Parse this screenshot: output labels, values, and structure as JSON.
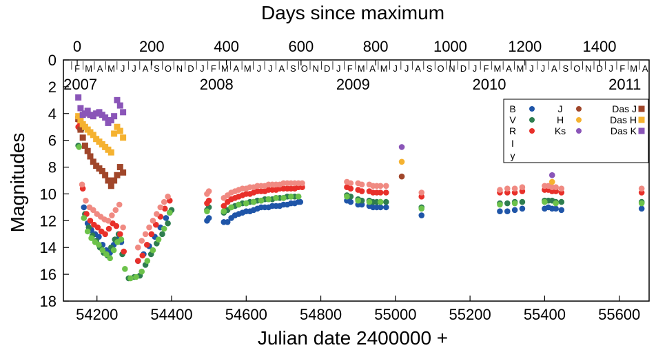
{
  "chart_data": {
    "type": "scatter",
    "title": "",
    "xlabel": "Julian date 2400000 +",
    "ylabel": "Magnitudes",
    "top_xlabel": "Days since maximum",
    "xlim": [
      54110,
      55680
    ],
    "ylim": [
      18,
      0
    ],
    "y_inverted": true,
    "grid": false,
    "legend_position": "top-right",
    "x_ticks": [
      54200,
      54400,
      54600,
      54800,
      55000,
      55200,
      55400,
      55600
    ],
    "x_tick_labels": [
      "54200",
      "54400",
      "54600",
      "54800",
      "55000",
      "55200",
      "55400",
      "55600"
    ],
    "y_ticks": [
      0,
      2,
      4,
      6,
      8,
      10,
      12,
      14,
      16,
      18
    ],
    "y_tick_labels": [
      "0",
      "2",
      "4",
      "6",
      "8",
      "10",
      "12",
      "14",
      "16",
      "18"
    ],
    "top_axis": {
      "max_jd": 54147,
      "ticks": [
        0,
        200,
        400,
        600,
        800,
        1000,
        1200,
        1400
      ],
      "tick_labels": [
        "0",
        "200",
        "400",
        "600",
        "800",
        "1000",
        "1200",
        "1400"
      ]
    },
    "month_letters": [
      "F",
      "M",
      "A",
      "M",
      "J",
      "J",
      "A",
      "S",
      "O",
      "N",
      "D",
      "J",
      "F",
      "M",
      "A",
      "M",
      "J",
      "J",
      "A",
      "S",
      "O",
      "N",
      "D",
      "J",
      "F",
      "M",
      "A",
      "M",
      "J",
      "J",
      "A",
      "S",
      "O",
      "N",
      "D",
      "J",
      "F",
      "M",
      "A",
      "M",
      "J",
      "J",
      "A",
      "S",
      "O",
      "N",
      "D",
      "J",
      "F",
      "M",
      "A"
    ],
    "month_start_jd": 54132,
    "month_days": 30.44,
    "year_labels": [
      {
        "text": "2007",
        "jd": 54101
      },
      {
        "text": "2008",
        "jd": 54466
      },
      {
        "text": "2009",
        "jd": 54832
      },
      {
        "text": "2010",
        "jd": 55197
      },
      {
        "text": "2011",
        "jd": 55562
      }
    ],
    "legend": [
      {
        "label": "B",
        "color": "#1f55a8",
        "marker": "circle"
      },
      {
        "label": "V",
        "color": "#2e7d4f",
        "marker": "circle"
      },
      {
        "label": "R",
        "color": "#e8302a",
        "marker": "circle"
      },
      {
        "label": "I",
        "color": "#f08a82",
        "marker": "circle"
      },
      {
        "label": "y",
        "color": "#6cc24a",
        "marker": "circle"
      },
      {
        "label": "J",
        "color": "#a0462a",
        "marker": "circle"
      },
      {
        "label": "H",
        "color": "#f5b230",
        "marker": "circle"
      },
      {
        "label": "Ks",
        "color": "#8a55b8",
        "marker": "circle"
      },
      {
        "label": "Das J",
        "color": "#a0462a",
        "marker": "square"
      },
      {
        "label": "Das H",
        "color": "#f5b230",
        "marker": "square"
      },
      {
        "label": "Das K",
        "color": "#8a55b8",
        "marker": "square"
      }
    ],
    "series": [
      {
        "name": "B",
        "color": "#1f55a8",
        "marker": "circle",
        "x": [
          54155,
          54165,
          54175,
          54185,
          54195,
          54205,
          54215,
          54225,
          54235,
          54245,
          54255,
          54265,
          54310,
          54325,
          54340,
          54355,
          54370,
          54385,
          54395,
          54495,
          54500,
          54540,
          54550,
          54560,
          54570,
          54580,
          54590,
          54600,
          54610,
          54620,
          54630,
          54640,
          54650,
          54660,
          54670,
          54680,
          54690,
          54700,
          54710,
          54720,
          54730,
          54740,
          54745,
          54870,
          54880,
          54900,
          54910,
          54930,
          54940,
          54950,
          54960,
          54975,
          55070,
          55280,
          55300,
          55320,
          55340,
          55400,
          55410,
          55420,
          55430,
          55445,
          55660
        ],
        "y": [
          5.2,
          11.0,
          12.2,
          12.7,
          13.0,
          13.2,
          13.8,
          14.2,
          14.4,
          13.8,
          13.4,
          13.6,
          15.0,
          14.5,
          13.9,
          13.2,
          12.5,
          11.8,
          11.4,
          12.0,
          11.8,
          12.1,
          12.1,
          11.8,
          11.6,
          11.5,
          11.4,
          11.3,
          11.3,
          11.2,
          11.1,
          11.0,
          11.0,
          11.0,
          10.9,
          10.9,
          10.9,
          10.8,
          10.8,
          10.7,
          10.7,
          10.6,
          10.6,
          10.5,
          10.6,
          10.8,
          10.8,
          10.9,
          11.0,
          11.0,
          11.0,
          11.0,
          11.6,
          11.3,
          11.3,
          11.2,
          11.1,
          11.1,
          11.0,
          11.1,
          11.1,
          11.2,
          11.1
        ]
      },
      {
        "name": "V",
        "color": "#2e7d4f",
        "marker": "circle",
        "x": [
          54150,
          54158,
          54168,
          54178,
          54188,
          54198,
          54208,
          54218,
          54228,
          54238,
          54248,
          54258,
          54268,
          54285,
          54300,
          54315,
          54330,
          54345,
          54360,
          54375,
          54390,
          54400,
          54495,
          54500,
          54540,
          54550,
          54560,
          54570,
          54580,
          54590,
          54600,
          54610,
          54620,
          54630,
          54640,
          54650,
          54660,
          54670,
          54680,
          54690,
          54700,
          54710,
          54720,
          54730,
          54740,
          54870,
          54880,
          54900,
          54910,
          54930,
          54940,
          54950,
          54960,
          54975,
          55070,
          55280,
          55300,
          55320,
          55340,
          55400,
          55410,
          55420,
          55430,
          55445,
          55660
        ],
        "y": [
          6.4,
          5.2,
          11.5,
          12.5,
          13.1,
          13.5,
          14.0,
          14.4,
          14.6,
          14.0,
          13.4,
          13.0,
          14.5,
          16.3,
          16.2,
          16.1,
          15.3,
          14.5,
          13.7,
          13.0,
          12.2,
          11.2,
          11.2,
          11.0,
          11.4,
          11.2,
          11.0,
          10.9,
          10.8,
          10.7,
          10.7,
          10.6,
          10.6,
          10.5,
          10.5,
          10.4,
          10.4,
          10.4,
          10.3,
          10.3,
          10.3,
          10.2,
          10.2,
          10.2,
          10.2,
          10.1,
          10.2,
          10.4,
          10.5,
          10.5,
          10.6,
          10.6,
          10.6,
          10.6,
          11.0,
          10.7,
          10.7,
          10.6,
          10.6,
          10.5,
          10.5,
          10.5,
          10.6,
          10.6,
          10.6
        ]
      },
      {
        "name": "R",
        "color": "#e8302a",
        "marker": "circle",
        "x": [
          54150,
          54155,
          54162,
          54172,
          54182,
          54192,
          54202,
          54212,
          54222,
          54232,
          54242,
          54252,
          54262,
          54272,
          54310,
          54322,
          54334,
          54346,
          54358,
          54370,
          54382,
          54395,
          54495,
          54500,
          54540,
          54550,
          54560,
          54570,
          54580,
          54590,
          54600,
          54610,
          54620,
          54630,
          54640,
          54650,
          54660,
          54670,
          54680,
          54690,
          54700,
          54710,
          54720,
          54730,
          54740,
          54750,
          54870,
          54880,
          54900,
          54910,
          54930,
          54940,
          54950,
          54960,
          54975,
          55070,
          55280,
          55300,
          55320,
          55340,
          55400,
          55410,
          55420,
          55430,
          55445,
          55660
        ],
        "y": [
          5.0,
          4.8,
          9.6,
          11.5,
          12.0,
          12.3,
          12.5,
          12.8,
          13.0,
          12.6,
          12.2,
          12.4,
          13.0,
          14.3,
          15.0,
          14.6,
          13.8,
          13.0,
          12.3,
          11.7,
          11.1,
          10.5,
          10.7,
          10.5,
          10.9,
          10.6,
          10.4,
          10.3,
          10.2,
          10.1,
          10.0,
          10.0,
          9.9,
          9.8,
          9.8,
          9.8,
          9.7,
          9.7,
          9.7,
          9.6,
          9.6,
          9.6,
          9.6,
          9.6,
          9.5,
          9.5,
          9.5,
          9.6,
          9.7,
          9.8,
          9.8,
          9.9,
          9.9,
          9.9,
          9.9,
          10.2,
          9.9,
          9.9,
          9.9,
          9.8,
          9.7,
          9.7,
          9.8,
          9.8,
          9.9,
          9.9
        ]
      },
      {
        "name": "I",
        "color": "#f08a82",
        "marker": "circle",
        "x": [
          54150,
          54160,
          54170,
          54180,
          54190,
          54200,
          54210,
          54220,
          54230,
          54240,
          54250,
          54260,
          54270,
          54310,
          54320,
          54330,
          54340,
          54350,
          54360,
          54370,
          54380,
          54390,
          54495,
          54500,
          54540,
          54550,
          54560,
          54570,
          54580,
          54590,
          54600,
          54610,
          54620,
          54630,
          54640,
          54650,
          54660,
          54670,
          54680,
          54690,
          54700,
          54710,
          54720,
          54730,
          54740,
          54750,
          54870,
          54880,
          54900,
          54910,
          54930,
          54940,
          54950,
          54960,
          54975,
          55070,
          55280,
          55300,
          55320,
          55340,
          55400,
          55410,
          55420,
          55430,
          55445,
          55660
        ],
        "y": [
          4.5,
          9.3,
          10.5,
          11.0,
          11.2,
          11.5,
          11.7,
          11.9,
          12.0,
          11.6,
          11.2,
          10.8,
          12.5,
          14.0,
          13.5,
          13.0,
          12.5,
          12.0,
          11.5,
          11.0,
          10.6,
          10.2,
          10.0,
          9.8,
          10.3,
          10.1,
          9.9,
          9.8,
          9.7,
          9.6,
          9.6,
          9.5,
          9.5,
          9.4,
          9.4,
          9.4,
          9.3,
          9.3,
          9.3,
          9.3,
          9.2,
          9.2,
          9.2,
          9.2,
          9.2,
          9.2,
          9.1,
          9.2,
          9.2,
          9.3,
          9.3,
          9.4,
          9.4,
          9.4,
          9.4,
          9.9,
          9.7,
          9.6,
          9.6,
          9.5,
          9.4,
          9.4,
          9.5,
          9.5,
          9.6,
          9.6
        ]
      },
      {
        "name": "y",
        "color": "#6cc24a",
        "marker": "circle",
        "x": [
          54152,
          54165,
          54175,
          54185,
          54195,
          54205,
          54215,
          54225,
          54235,
          54245,
          54255,
          54265,
          54275,
          54290,
          54305,
          54320,
          54335,
          54350,
          54365,
          54380,
          54395,
          54495,
          54540,
          54560,
          54580,
          54600,
          54620,
          54640,
          54660,
          54680,
          54700,
          54720,
          54740,
          54870,
          54900,
          54930,
          54960,
          55070,
          55280,
          55320,
          55400,
          55430,
          55660
        ],
        "y": [
          6.5,
          11.8,
          12.8,
          13.3,
          13.6,
          13.8,
          14.2,
          14.5,
          14.8,
          14.2,
          13.6,
          13.4,
          15.6,
          16.3,
          16.2,
          15.8,
          15.0,
          14.2,
          13.4,
          12.6,
          11.4,
          11.3,
          11.3,
          11.0,
          10.8,
          10.7,
          10.6,
          10.5,
          10.4,
          10.3,
          10.3,
          10.2,
          10.2,
          10.2,
          10.5,
          10.6,
          10.6,
          11.1,
          10.8,
          10.7,
          10.6,
          10.7,
          10.7
        ]
      },
      {
        "name": "J",
        "color": "#a0462a",
        "marker": "circle",
        "x": [
          55017
        ],
        "y": [
          8.7
        ]
      },
      {
        "name": "H",
        "color": "#f5b230",
        "marker": "circle",
        "x": [
          55017,
          55420
        ],
        "y": [
          7.6,
          9.1
        ]
      },
      {
        "name": "Ks",
        "color": "#8a55b8",
        "marker": "circle",
        "x": [
          55017,
          55420
        ],
        "y": [
          6.5,
          8.6
        ]
      },
      {
        "name": "Das J",
        "color": "#a0462a",
        "marker": "square",
        "x": [
          54150,
          54156,
          54162,
          54168,
          54175,
          54182,
          54190,
          54198,
          54206,
          54214,
          54222,
          54230,
          54238,
          54246,
          54254,
          54262,
          54270
        ],
        "y": [
          4.4,
          5.2,
          5.8,
          6.4,
          6.8,
          7.2,
          7.6,
          7.9,
          8.1,
          8.3,
          8.6,
          9.0,
          9.4,
          9.0,
          8.6,
          8.0,
          8.4
        ]
      },
      {
        "name": "Das H",
        "color": "#f5b230",
        "marker": "square",
        "x": [
          54150,
          54156,
          54162,
          54168,
          54175,
          54182,
          54190,
          54198,
          54206,
          54214,
          54222,
          54230,
          54238,
          54246,
          54254,
          54262,
          54270
        ],
        "y": [
          4.2,
          4.5,
          4.8,
          5.0,
          5.2,
          5.4,
          5.6,
          5.9,
          6.1,
          6.3,
          6.5,
          6.7,
          6.9,
          5.5,
          5.0,
          5.3,
          5.8
        ]
      },
      {
        "name": "Das K",
        "color": "#8a55b8",
        "marker": "square",
        "x": [
          54150,
          54156,
          54162,
          54168,
          54175,
          54182,
          54190,
          54198,
          54206,
          54214,
          54222,
          54230,
          54238,
          54246,
          54254,
          54262,
          54270
        ],
        "y": [
          2.8,
          3.6,
          4.1,
          4.0,
          3.8,
          4.1,
          4.2,
          4.0,
          3.9,
          4.1,
          4.3,
          4.7,
          4.5,
          4.2,
          3.0,
          3.4,
          3.9
        ]
      }
    ]
  }
}
